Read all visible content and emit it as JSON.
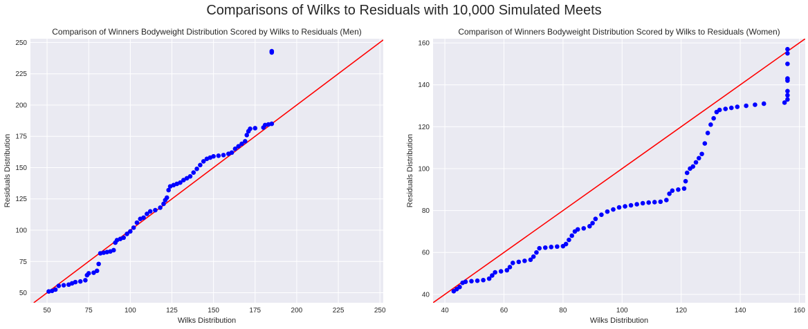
{
  "figure": {
    "suptitle": "Comparisons of Wilks to Residuals with 10,000 Simulated Meets",
    "colors": {
      "background": "#eaeaf2",
      "grid": "#ffffff",
      "points": "#0000ff",
      "reference_line": "#ff0000"
    }
  },
  "chart_data": [
    {
      "type": "scatter",
      "title": "Comparison of Winners Bodyweight Distribution Scored by Wilks to Residuals (Men)",
      "xlabel": "Wilks Distribution",
      "ylabel": "Residuals Distribution",
      "xlim": [
        40,
        252
      ],
      "ylim": [
        42,
        253
      ],
      "xticks": [
        50,
        75,
        100,
        125,
        150,
        175,
        200,
        225,
        250
      ],
      "yticks": [
        50,
        75,
        100,
        125,
        150,
        175,
        200,
        225,
        250
      ],
      "grid": true,
      "reference_line": "y = x",
      "series": [
        {
          "points": [
            [
              51,
              51
            ],
            [
              53,
              51.5
            ],
            [
              55,
              52.5
            ],
            [
              57,
              55.5
            ],
            [
              60,
              56
            ],
            [
              63,
              56.5
            ],
            [
              65,
              57.5
            ],
            [
              67,
              58.5
            ],
            [
              70,
              59
            ],
            [
              73,
              60
            ],
            [
              74,
              64
            ],
            [
              75,
              65.5
            ],
            [
              78,
              66
            ],
            [
              80,
              67.5
            ],
            [
              81,
              73
            ],
            [
              82,
              81.5
            ],
            [
              84,
              82
            ],
            [
              86,
              82.5
            ],
            [
              88,
              83
            ],
            [
              90,
              84
            ],
            [
              91,
              90
            ],
            [
              92,
              92
            ],
            [
              94,
              93
            ],
            [
              96,
              94
            ],
            [
              98,
              97
            ],
            [
              100,
              99
            ],
            [
              102,
              102
            ],
            [
              104,
              106
            ],
            [
              106,
              109
            ],
            [
              108,
              110
            ],
            [
              110,
              113
            ],
            [
              112,
              115
            ],
            [
              115,
              116
            ],
            [
              118,
              118
            ],
            [
              120,
              121
            ],
            [
              121,
              124
            ],
            [
              122,
              126
            ],
            [
              123,
              132
            ],
            [
              124,
              135
            ],
            [
              126,
              136
            ],
            [
              128,
              137
            ],
            [
              130,
              138
            ],
            [
              132,
              140
            ],
            [
              134,
              141.5
            ],
            [
              136,
              143
            ],
            [
              138,
              146
            ],
            [
              140,
              149
            ],
            [
              142,
              152
            ],
            [
              144,
              155
            ],
            [
              146,
              157
            ],
            [
              148,
              158
            ],
            [
              150,
              159
            ],
            [
              153,
              159.5
            ],
            [
              156,
              160
            ],
            [
              159,
              161
            ],
            [
              161,
              162
            ],
            [
              163,
              165
            ],
            [
              165,
              167
            ],
            [
              167,
              169
            ],
            [
              169,
              171
            ],
            [
              170,
              176
            ],
            [
              171,
              179
            ],
            [
              172,
              181
            ],
            [
              175,
              181.5
            ],
            [
              180,
              182
            ],
            [
              181,
              184
            ],
            [
              183,
              184.5
            ],
            [
              185,
              185
            ],
            [
              185,
              242
            ],
            [
              185,
              243
            ]
          ]
        }
      ]
    },
    {
      "type": "scatter",
      "title": "Comparison of Winners Bodyweight Distribution Scored by Wilks to Residuals (Women)",
      "xlabel": "Wilks Distribution",
      "ylabel": "Residuals Distribution",
      "xlim": [
        36,
        162
      ],
      "ylim": [
        36,
        162
      ],
      "xticks": [
        40,
        60,
        80,
        100,
        120,
        140,
        160
      ],
      "yticks": [
        40,
        60,
        80,
        100,
        120,
        140,
        160
      ],
      "grid": true,
      "reference_line": "y = x",
      "series": [
        {
          "points": [
            [
              43,
              41.5
            ],
            [
              44,
              42.5
            ],
            [
              45,
              43.5
            ],
            [
              46,
              45.5
            ],
            [
              47,
              46
            ],
            [
              49,
              46.3
            ],
            [
              51,
              46.5
            ],
            [
              53,
              46.8
            ],
            [
              55,
              47.5
            ],
            [
              56,
              49
            ],
            [
              57,
              50.5
            ],
            [
              59,
              51
            ],
            [
              61,
              51.5
            ],
            [
              62,
              53
            ],
            [
              63,
              55
            ],
            [
              65,
              55.5
            ],
            [
              67,
              56
            ],
            [
              69,
              56.5
            ],
            [
              70,
              58
            ],
            [
              71,
              60
            ],
            [
              72,
              62
            ],
            [
              74,
              62.3
            ],
            [
              76,
              62.6
            ],
            [
              78,
              62.8
            ],
            [
              80,
              63
            ],
            [
              81,
              64
            ],
            [
              82,
              66
            ],
            [
              83,
              68
            ],
            [
              84,
              70
            ],
            [
              85,
              71
            ],
            [
              87,
              71.5
            ],
            [
              89,
              72.5
            ],
            [
              90,
              74
            ],
            [
              91,
              76
            ],
            [
              93,
              78
            ],
            [
              95,
              79.5
            ],
            [
              97,
              80.5
            ],
            [
              99,
              81.5
            ],
            [
              101,
              82
            ],
            [
              103,
              82.5
            ],
            [
              105,
              83
            ],
            [
              107,
              83.5
            ],
            [
              109,
              83.8
            ],
            [
              111,
              84
            ],
            [
              113,
              84.2
            ],
            [
              115,
              85
            ],
            [
              116,
              88
            ],
            [
              117,
              89.5
            ],
            [
              119,
              90
            ],
            [
              121,
              90.5
            ],
            [
              121.5,
              94
            ],
            [
              122,
              98
            ],
            [
              123,
              100
            ],
            [
              124,
              101
            ],
            [
              125,
              103
            ],
            [
              126,
              105
            ],
            [
              127,
              107
            ],
            [
              128,
              112
            ],
            [
              129,
              117
            ],
            [
              130,
              121
            ],
            [
              131,
              124
            ],
            [
              132,
              127
            ],
            [
              133,
              128
            ],
            [
              135,
              128.5
            ],
            [
              137,
              129
            ],
            [
              139,
              129.5
            ],
            [
              142,
              130
            ],
            [
              145,
              130.5
            ],
            [
              148,
              131
            ],
            [
              155,
              131.5
            ],
            [
              156,
              133
            ],
            [
              156,
              135
            ],
            [
              156,
              137
            ],
            [
              156,
              142
            ],
            [
              156,
              143
            ],
            [
              156,
              150
            ],
            [
              156,
              155
            ],
            [
              156,
              157
            ]
          ]
        }
      ]
    }
  ]
}
